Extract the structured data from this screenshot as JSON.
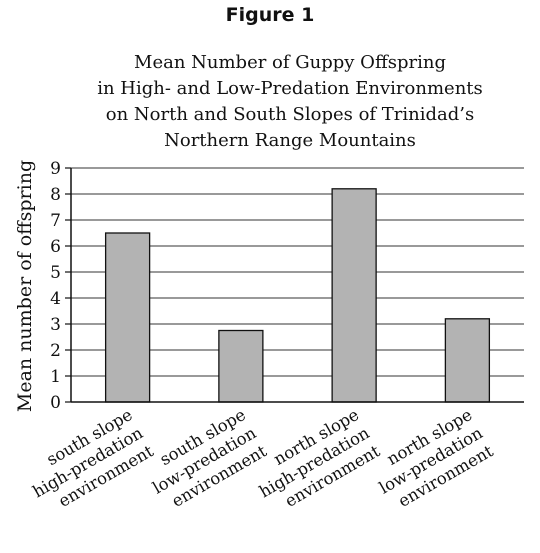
{
  "figure_label": "Figure 1",
  "chart_data": {
    "type": "bar",
    "title_lines": [
      "Mean Number of Guppy Offspring",
      "in High- and Low-Predation Environments",
      "on North and South Slopes of Trinidad’s",
      "Northern Range Mountains"
    ],
    "ylabel": "Mean number of offspring",
    "xlabel": "",
    "ylim": [
      0,
      9
    ],
    "yticks": [
      0,
      1,
      2,
      3,
      4,
      5,
      6,
      7,
      8,
      9
    ],
    "grid": true,
    "categories": [
      [
        "south slope",
        "high-predation",
        "environment"
      ],
      [
        "south slope",
        "low-predation",
        "environment"
      ],
      [
        "north slope",
        "high-predation",
        "environment"
      ],
      [
        "north slope",
        "low-predation",
        "environment"
      ]
    ],
    "values": [
      6.5,
      2.75,
      8.2,
      3.2
    ],
    "bar_color": "#b3b3b3",
    "edge_color": "#111111"
  }
}
